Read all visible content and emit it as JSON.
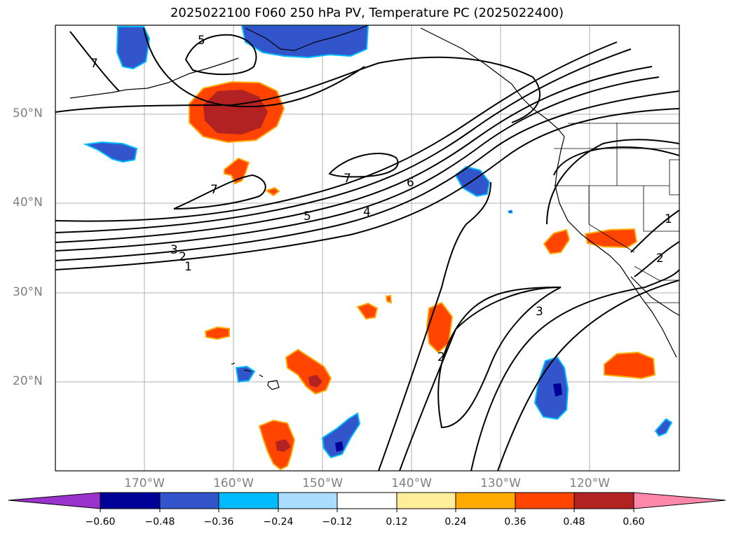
{
  "title": "2025022100 F060 250 hPa PV, Temperature PC (2025022400)",
  "map": {
    "projection": "PlateCarree",
    "extent": {
      "lon": [
        -180,
        -110
      ],
      "lat": [
        10,
        60
      ]
    },
    "gridlines": true,
    "lat_labels": [
      "50°N",
      "40°N",
      "30°N",
      "20°N"
    ],
    "lon_labels": [
      "170°W",
      "160°W",
      "150°W",
      "140°W",
      "130°W",
      "120°W"
    ],
    "contour_labels": [
      "5",
      "7",
      "7",
      "7",
      "6",
      "5",
      "4",
      "3",
      "2",
      "1",
      "3",
      "2",
      "1",
      "2"
    ]
  },
  "colorbar": {
    "orientation": "horizontal",
    "extend": "both",
    "ticks": [
      "−0.60",
      "−0.48",
      "−0.36",
      "−0.24",
      "−0.12",
      "0.12",
      "0.24",
      "0.36",
      "0.48",
      "0.60"
    ],
    "colors": [
      "#9933cc",
      "#000099",
      "#3355cc",
      "#00bbff",
      "#aaddff",
      "#ffffff",
      "#ffee99",
      "#ffaa00",
      "#ff4400",
      "#b22222",
      "#ff88aa"
    ]
  }
}
